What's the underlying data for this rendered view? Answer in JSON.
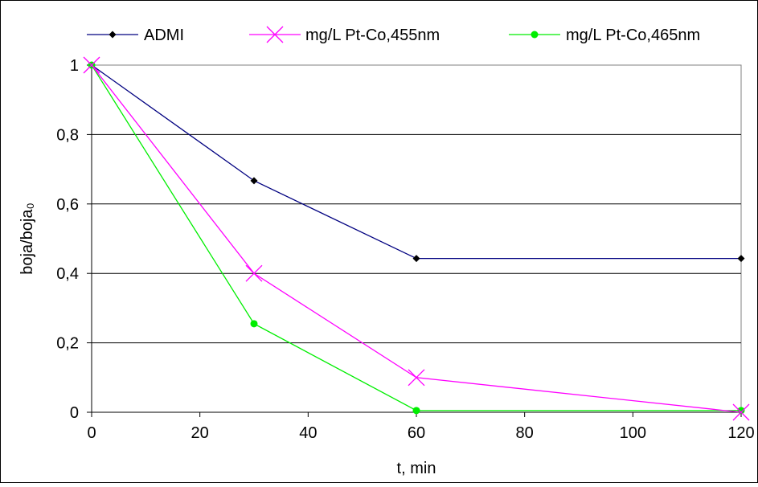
{
  "chart_data": {
    "type": "line",
    "xlabel": "t, min",
    "ylabel": "boja/boja₀",
    "xlim": [
      0,
      120
    ],
    "ylim": [
      0,
      1
    ],
    "x_ticks": [
      "0",
      "20",
      "40",
      "60",
      "80",
      "100",
      "120"
    ],
    "y_ticks": [
      "0",
      "0,2",
      "0,4",
      "0,6",
      "0,8",
      "1"
    ],
    "grid": {
      "horizontal": true,
      "vertical": false
    },
    "legend_position": "top",
    "series": [
      {
        "name": "ADMI",
        "color": "#000080",
        "marker": "diamond",
        "x": [
          0,
          30,
          60,
          120
        ],
        "y": [
          1,
          0.667,
          0.443,
          0.443
        ]
      },
      {
        "name": "mg/L Pt-Co,455nm",
        "color": "#ff00ff",
        "marker": "x",
        "x": [
          0,
          30,
          60,
          120
        ],
        "y": [
          1,
          0.4,
          0.1,
          0
        ]
      },
      {
        "name": "mg/L Pt-Co,465nm",
        "color": "#00ee00",
        "marker": "circle",
        "x": [
          0,
          30,
          60,
          120
        ],
        "y": [
          1,
          0.255,
          0.005,
          0.005
        ]
      }
    ]
  }
}
